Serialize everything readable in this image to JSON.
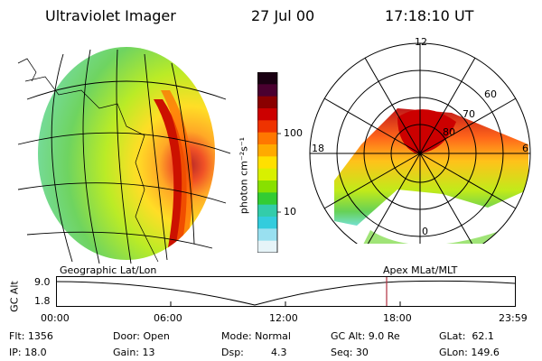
{
  "header": {
    "instrument": "Ultraviolet Imager",
    "date": "27 Jul 00",
    "time": "17:18:10 UT"
  },
  "colorbar": {
    "unit_label": "photon cm⁻²s⁻¹",
    "ticks": [
      "100",
      "10"
    ],
    "colors": [
      "#1a0012",
      "#4a0030",
      "#8a0000",
      "#cc0000",
      "#ee3300",
      "#ff7700",
      "#ffaa00",
      "#ffe000",
      "#d8f000",
      "#88e000",
      "#33cc33",
      "#33ccaa",
      "#33ccdd",
      "#99e0f0",
      "#e6f4f8"
    ]
  },
  "polar_plot": {
    "mlt_labels": {
      "top": "12",
      "left": "18",
      "right": "6",
      "bottom": "0"
    },
    "lat_labels": [
      "60",
      "70",
      "80"
    ]
  },
  "altitude_panel": {
    "left_label": "Geographic Lat/Lon",
    "right_label": "Apex MLat/MLT",
    "axis_title": "GC Alt",
    "y_ticks": [
      "9.0",
      "1.8"
    ],
    "x_ticks": [
      "00:00",
      "06:00",
      "12:00",
      "18:00",
      "23:59"
    ],
    "marker_color": "#b03040"
  },
  "status": {
    "flt": "Flt: 1356",
    "ip": "IP: 18.0",
    "door": "Door: Open",
    "gain": "Gain: 13",
    "mode": "Mode: Normal",
    "dsp_label": "Dsp:",
    "dsp_value": "4.3",
    "gc_alt": "GC Alt: 9.0 Re",
    "seq": "Seq: 30",
    "glat": "GLat:  62.1",
    "glon": "GLon: 149.6"
  }
}
